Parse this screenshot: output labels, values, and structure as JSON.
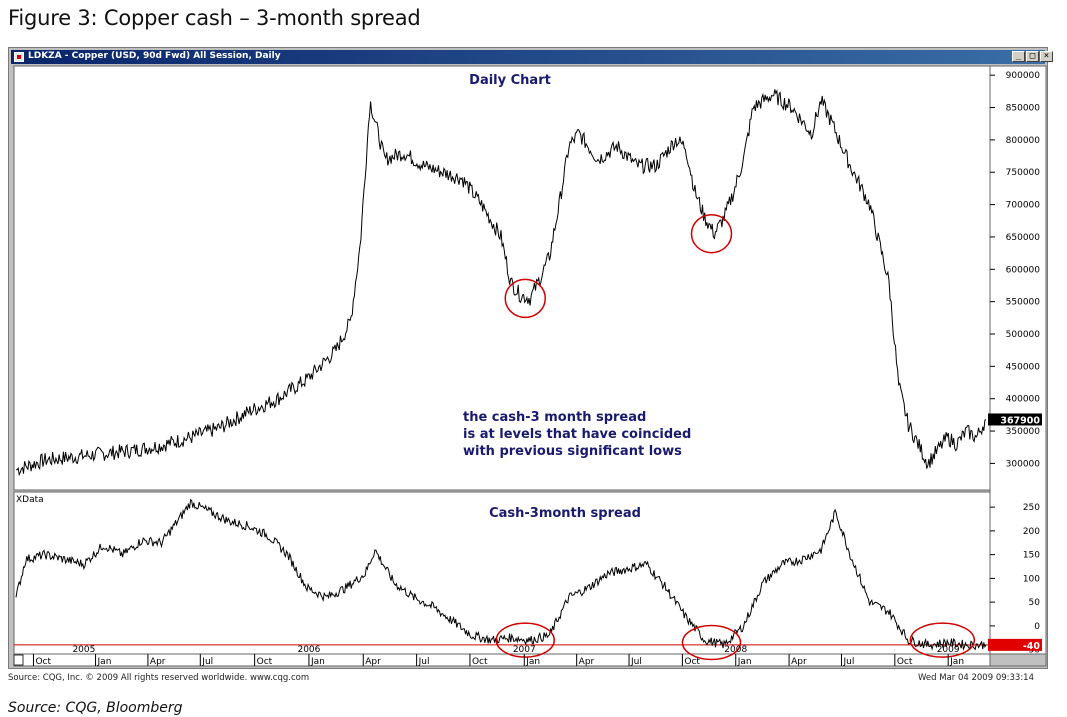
{
  "figure": {
    "title": "Figure 3: Copper cash – 3-month spread",
    "source": "Source: CQG, Bloomberg"
  },
  "window": {
    "title": "LDKZA - Copper (USD, 90d Fwd) All Session, Daily",
    "minimize": "_",
    "maximize": "□",
    "close": "×"
  },
  "footer": {
    "left": "Source: CQG, Inc. © 2009 All rights reserved worldwide. www.cqg.com",
    "right": "Wed Mar 04 2009 09:33:14"
  },
  "colors": {
    "price_line": "#000000",
    "title_text": "#1a1a6e",
    "circle": "#d00000",
    "ref_line": "#d00000",
    "tag_bg": "#000000",
    "spread_tag_bg": "#e00000"
  },
  "chart_data": [
    {
      "type": "line",
      "title": "Daily Chart",
      "name": "price",
      "ylim": [
        262000,
        908000
      ],
      "yticks": [
        300000,
        350000,
        400000,
        450000,
        500000,
        550000,
        600000,
        650000,
        700000,
        750000,
        800000,
        850000,
        900000
      ],
      "ytick_labels": [
        "300000",
        "350000",
        "400000",
        "450000",
        "500000",
        "550000",
        "600000",
        "650000",
        "700000",
        "750000",
        "800000",
        "850000",
        "900000"
      ],
      "last_value_label": "367900",
      "last_value": 367900,
      "annotation": [
        "the cash-3 month spread",
        "is at levels that have coincided",
        "with previous significant lows"
      ],
      "circled_lows": [
        {
          "x": 0.525,
          "y": 555000
        },
        {
          "x": 0.717,
          "y": 655000
        }
      ],
      "x": [
        0,
        0.03,
        0.06,
        0.09,
        0.12,
        0.15,
        0.18,
        0.21,
        0.24,
        0.27,
        0.3,
        0.33,
        0.345,
        0.355,
        0.365,
        0.38,
        0.4,
        0.42,
        0.44,
        0.46,
        0.48,
        0.5,
        0.51,
        0.52,
        0.53,
        0.54,
        0.55,
        0.56,
        0.57,
        0.58,
        0.6,
        0.62,
        0.64,
        0.66,
        0.68,
        0.69,
        0.7,
        0.71,
        0.72,
        0.73,
        0.74,
        0.75,
        0.76,
        0.78,
        0.8,
        0.82,
        0.83,
        0.84,
        0.86,
        0.88,
        0.9,
        0.91,
        0.92,
        0.93,
        0.94,
        0.95,
        0.96,
        0.97,
        0.98,
        0.99,
        1.0
      ],
      "values": [
        290000,
        305000,
        310000,
        315000,
        320000,
        328000,
        340000,
        355000,
        380000,
        400000,
        430000,
        475000,
        520000,
        640000,
        860000,
        770000,
        780000,
        760000,
        750000,
        740000,
        700000,
        650000,
        580000,
        560000,
        555000,
        585000,
        620000,
        700000,
        790000,
        810000,
        770000,
        790000,
        760000,
        760000,
        800000,
        790000,
        720000,
        680000,
        655000,
        680000,
        720000,
        770000,
        850000,
        870000,
        850000,
        810000,
        860000,
        830000,
        760000,
        700000,
        580000,
        420000,
        360000,
        330000,
        300000,
        320000,
        340000,
        330000,
        350000,
        340000,
        367900
      ]
    },
    {
      "type": "line",
      "title": "Cash-3month spread",
      "name": "spread",
      "panel_label": "XData",
      "ylim": [
        -55,
        265
      ],
      "yticks": [
        -50,
        0,
        50,
        100,
        150,
        200,
        250
      ],
      "ytick_labels": [
        "-50",
        "0",
        "50",
        "100",
        "150",
        "200",
        "250"
      ],
      "last_value_label": "-40",
      "last_value": -40,
      "reference_level": -40,
      "circled_lows": [
        {
          "x": 0.525,
          "y": -30
        },
        {
          "x": 0.717,
          "y": -35
        },
        {
          "x": 0.955,
          "y": -30
        }
      ],
      "x": [
        0,
        0.01,
        0.03,
        0.05,
        0.07,
        0.09,
        0.11,
        0.13,
        0.15,
        0.17,
        0.18,
        0.2,
        0.22,
        0.24,
        0.26,
        0.28,
        0.3,
        0.32,
        0.34,
        0.36,
        0.37,
        0.39,
        0.41,
        0.43,
        0.45,
        0.47,
        0.49,
        0.51,
        0.53,
        0.55,
        0.57,
        0.59,
        0.61,
        0.63,
        0.65,
        0.67,
        0.69,
        0.71,
        0.73,
        0.75,
        0.77,
        0.79,
        0.81,
        0.83,
        0.845,
        0.86,
        0.88,
        0.9,
        0.92,
        0.94,
        0.96,
        0.98,
        1.0
      ],
      "values": [
        60,
        140,
        150,
        140,
        130,
        170,
        150,
        180,
        175,
        230,
        260,
        240,
        220,
        210,
        190,
        150,
        80,
        60,
        80,
        110,
        160,
        90,
        60,
        40,
        10,
        -20,
        -30,
        -25,
        -30,
        -20,
        60,
        80,
        110,
        120,
        130,
        80,
        20,
        -30,
        -40,
        0,
        90,
        130,
        140,
        160,
        240,
        150,
        50,
        30,
        -30,
        -40,
        -35,
        -40,
        -40
      ]
    }
  ],
  "x_axis": {
    "tick_labels": [
      "Oct",
      "Jan",
      "Apr",
      "Jul",
      "Oct",
      "Jan",
      "Apr",
      "Jul",
      "Oct",
      "Jan",
      "Apr",
      "Jul",
      "Oct",
      "Jan",
      "Apr",
      "Jul",
      "Oct",
      "Jan"
    ],
    "tick_x": [
      0.018,
      0.082,
      0.136,
      0.19,
      0.246,
      0.302,
      0.358,
      0.413,
      0.468,
      0.524,
      0.578,
      0.632,
      0.687,
      0.742,
      0.797,
      0.851,
      0.906,
      0.961
    ],
    "year_labels": [
      "2005",
      "2006",
      "2007",
      "2008",
      "2009"
    ],
    "year_x": [
      0.07,
      0.302,
      0.524,
      0.742,
      0.961
    ]
  }
}
